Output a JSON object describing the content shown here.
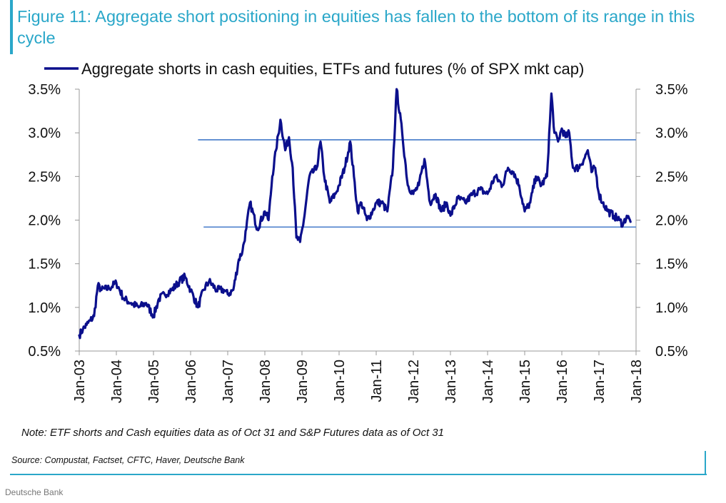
{
  "title": "Figure 11: Aggregate short positioning in equities has fallen to the bottom of its range in this cycle",
  "note": "Note: ETF shorts and Cash equities data as of Oct 31 and S&P Futures data as of Oct 31",
  "source": "Source: Compustat, Factset, CFTC, Haver, Deutsche Bank",
  "footer": "Deutsche Bank",
  "colors": {
    "accent": "#2aa7c9",
    "series": "#0b0f8c",
    "range_line": "#5b8bd0"
  },
  "chart_data": {
    "type": "line",
    "title": "",
    "ylabel": "",
    "xlabel": "",
    "ylim": [
      0.5,
      3.5
    ],
    "yticks": [
      0.5,
      1.0,
      1.5,
      2.0,
      2.5,
      3.0,
      3.5
    ],
    "ytick_labels": [
      "0.5%",
      "1.0%",
      "1.5%",
      "2.0%",
      "2.5%",
      "3.0%",
      "3.5%"
    ],
    "xlim": [
      2003,
      2018
    ],
    "xticks": [
      2003,
      2004,
      2005,
      2006,
      2007,
      2008,
      2009,
      2010,
      2011,
      2012,
      2013,
      2014,
      2015,
      2016,
      2017,
      2018
    ],
    "xtick_labels": [
      "Jan-03",
      "Jan-04",
      "Jan-05",
      "Jan-06",
      "Jan-07",
      "Jan-08",
      "Jan-09",
      "Jan-10",
      "Jan-11",
      "Jan-12",
      "Jan-13",
      "Jan-14",
      "Jan-15",
      "Jan-16",
      "Jan-17",
      "Jan-18"
    ],
    "legend": "top-left",
    "series": [
      {
        "name": "Aggregate shorts in cash equities, ETFs and futures (% of SPX mkt cap)",
        "x": [
          2003.0,
          2003.1,
          2003.2,
          2003.3,
          2003.4,
          2003.5,
          2003.6,
          2003.8,
          2004.0,
          2004.2,
          2004.4,
          2004.6,
          2004.8,
          2005.0,
          2005.15,
          2005.3,
          2005.5,
          2005.7,
          2005.85,
          2006.0,
          2006.2,
          2006.35,
          2006.5,
          2006.7,
          2006.9,
          2007.0,
          2007.15,
          2007.3,
          2007.4,
          2007.5,
          2007.6,
          2007.8,
          2008.0,
          2008.1,
          2008.2,
          2008.3,
          2008.42,
          2008.55,
          2008.65,
          2008.75,
          2008.85,
          2008.95,
          2009.05,
          2009.2,
          2009.4,
          2009.5,
          2009.6,
          2009.75,
          2009.9,
          2010.0,
          2010.15,
          2010.3,
          2010.4,
          2010.5,
          2010.6,
          2010.75,
          2010.9,
          2011.0,
          2011.15,
          2011.3,
          2011.45,
          2011.55,
          2011.7,
          2011.85,
          2012.0,
          2012.15,
          2012.3,
          2012.45,
          2012.6,
          2012.75,
          2012.9,
          2013.0,
          2013.2,
          2013.4,
          2013.6,
          2013.8,
          2014.0,
          2014.2,
          2014.4,
          2014.55,
          2014.7,
          2014.85,
          2015.0,
          2015.15,
          2015.3,
          2015.45,
          2015.6,
          2015.72,
          2015.8,
          2015.9,
          2016.0,
          2016.1,
          2016.2,
          2016.3,
          2016.45,
          2016.6,
          2016.7,
          2016.8,
          2016.9,
          2017.0,
          2017.1,
          2017.25,
          2017.4,
          2017.55,
          2017.65,
          2017.75,
          2017.85
        ],
        "y": [
          0.68,
          0.75,
          0.8,
          0.85,
          0.9,
          1.25,
          1.2,
          1.22,
          1.28,
          1.1,
          1.05,
          1.0,
          1.05,
          0.9,
          1.1,
          1.15,
          1.2,
          1.3,
          1.35,
          1.2,
          1.0,
          1.2,
          1.3,
          1.2,
          1.2,
          1.15,
          1.2,
          1.55,
          1.65,
          1.9,
          2.2,
          1.9,
          2.1,
          2.0,
          2.5,
          2.8,
          3.15,
          2.8,
          2.95,
          2.6,
          1.8,
          1.75,
          2.0,
          2.5,
          2.6,
          2.9,
          2.5,
          2.2,
          2.3,
          2.4,
          2.6,
          2.9,
          2.5,
          2.1,
          2.2,
          2.0,
          2.1,
          2.2,
          2.2,
          2.1,
          2.6,
          3.5,
          3.0,
          2.4,
          2.3,
          2.4,
          2.7,
          2.2,
          2.3,
          2.1,
          2.2,
          2.05,
          2.25,
          2.2,
          2.3,
          2.35,
          2.3,
          2.5,
          2.4,
          2.6,
          2.55,
          2.4,
          2.1,
          2.2,
          2.5,
          2.4,
          2.5,
          3.45,
          3.0,
          2.9,
          3.05,
          2.95,
          3.0,
          2.6,
          2.6,
          2.7,
          2.8,
          2.55,
          2.6,
          2.3,
          2.2,
          2.1,
          2.05,
          2.0,
          1.95,
          2.05,
          1.98
        ]
      }
    ],
    "reference_lines": [
      {
        "y": 2.92,
        "x_start": 2006.2,
        "x_end": 2018.0
      },
      {
        "y": 1.92,
        "x_start": 2006.35,
        "x_end": 2018.0
      }
    ]
  }
}
